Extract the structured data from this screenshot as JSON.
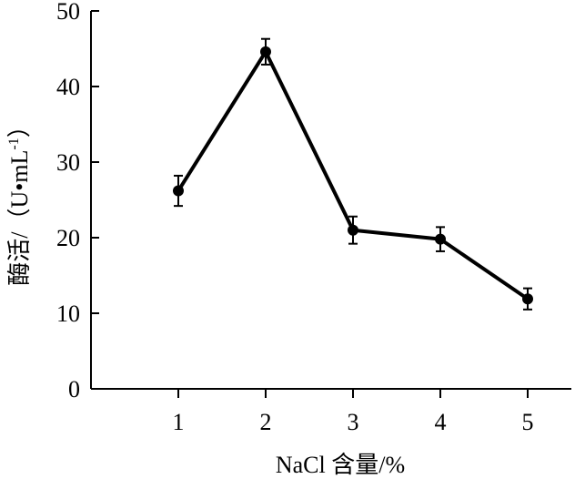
{
  "chart_data": {
    "type": "line",
    "title": "",
    "xlabel": "NaCl 含量/%",
    "ylabel": "酶活/（U•mL-1）",
    "ylabel_main": "酶活/（U•mL",
    "ylabel_sup": "-1",
    "ylabel_close": "）",
    "categories": [
      "1",
      "2",
      "3",
      "4",
      "5"
    ],
    "x": [
      1,
      2,
      3,
      4,
      5
    ],
    "series": [
      {
        "values": [
          26.2,
          44.6,
          21.0,
          19.8,
          11.9
        ],
        "error": [
          2.0,
          1.7,
          1.8,
          1.6,
          1.4
        ]
      }
    ],
    "xlim": [
      0,
      5.5
    ],
    "ylim": [
      0,
      50
    ],
    "yticks": [
      0,
      10,
      20,
      30,
      40,
      50
    ],
    "grid": false,
    "line_color": "#000000"
  }
}
